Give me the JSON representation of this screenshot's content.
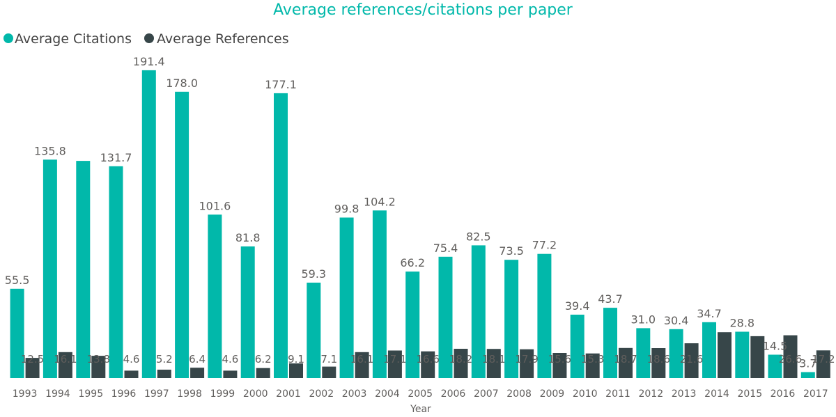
{
  "chart_data": {
    "type": "bar",
    "title": "Average references/citations per paper",
    "xlabel": "Year",
    "ylabel": "",
    "ylim": [
      0,
      195
    ],
    "legend_position": "top-left",
    "categories": [
      "1993",
      "1994",
      "1995",
      "1996",
      "1997",
      "1998",
      "1999",
      "2000",
      "2001",
      "2002",
      "2003",
      "2004",
      "2005",
      "2006",
      "2007",
      "2008",
      "2009",
      "2010",
      "2011",
      "2012",
      "2013",
      "2014",
      "2015",
      "2016",
      "2017"
    ],
    "series": [
      {
        "name": "Average Citations",
        "color": "#01B8AA",
        "values": [
          55.5,
          135.8,
          null,
          131.7,
          191.4,
          178.0,
          101.6,
          81.8,
          177.1,
          59.3,
          99.8,
          104.2,
          66.2,
          75.4,
          82.5,
          73.5,
          77.2,
          39.4,
          43.7,
          31.0,
          30.4,
          34.7,
          28.8,
          14.5,
          3.7
        ],
        "estimated_values": {
          "1995": 135.0
        },
        "labels": [
          "55.5",
          "135.8",
          "",
          "131.7",
          "191.4",
          "178.0",
          "101.6",
          "81.8",
          "177.1",
          "59.3",
          "99.8",
          "104.2",
          "66.2",
          "75.4",
          "82.5",
          "73.5",
          "77.2",
          "39.4",
          "43.7",
          "31.0",
          "30.4",
          "34.7",
          "28.8",
          "14.5",
          "3.7"
        ]
      },
      {
        "name": "Average References",
        "color": "#374649",
        "values": [
          12.5,
          16.1,
          13.8,
          4.6,
          5.2,
          6.4,
          4.6,
          6.2,
          9.1,
          7.1,
          16.1,
          17.1,
          16.6,
          18.2,
          18.1,
          17.9,
          15.6,
          15.3,
          18.7,
          18.6,
          21.6,
          null,
          null,
          26.6,
          17.2
        ],
        "estimated_values": {
          "2014": 28.5,
          "2015": 26.0
        },
        "labels": [
          "12.5",
          "16.1",
          "13.8",
          "4.6",
          "5.2",
          "6.4",
          "4.6",
          "6.2",
          "9.1",
          "7.1",
          "16.1",
          "17.1",
          "16.6",
          "18.2",
          "18.1",
          "17.9",
          "15.6",
          "15.3",
          "18.7",
          "18.6",
          "21.6",
          "",
          "",
          "26.6",
          "17.2"
        ]
      }
    ]
  }
}
